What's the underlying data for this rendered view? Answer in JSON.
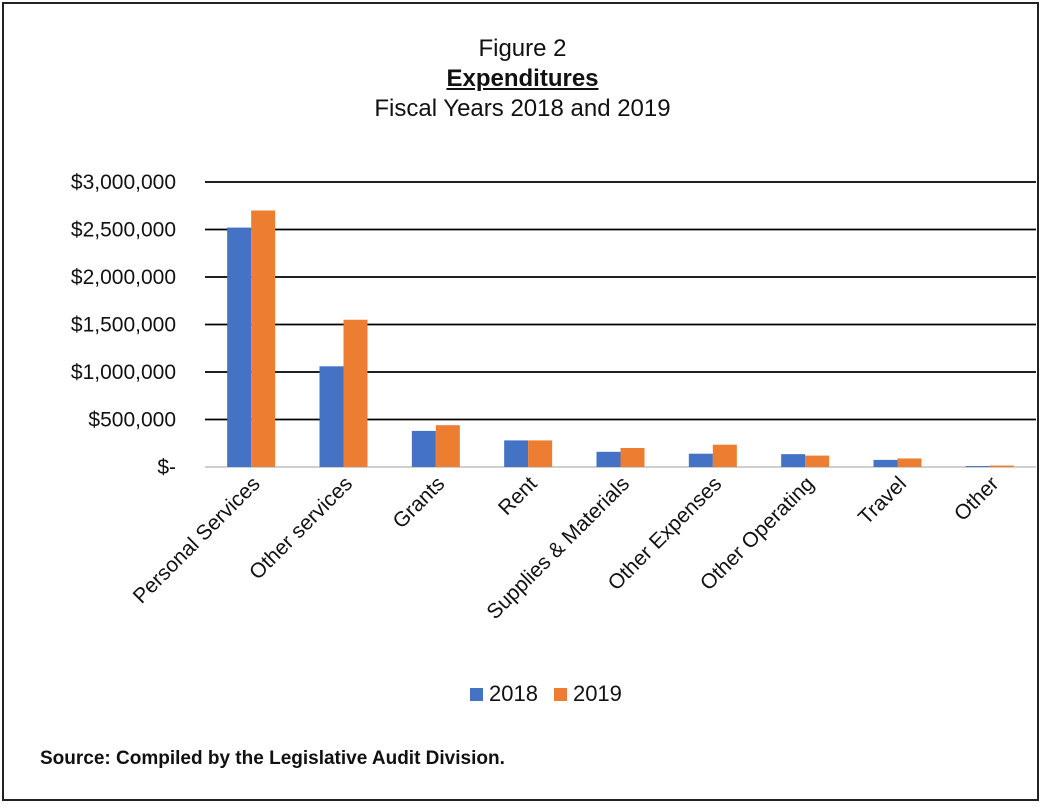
{
  "figure_label": "Figure 2",
  "title": "Expenditures",
  "subtitle": "Fiscal Years 2018 and 2019",
  "source_note": "Source:  Compiled by the Legislative Audit Division.",
  "colors": {
    "s2018": "#4472C4",
    "s2019": "#ED7D31",
    "grid": "#000000"
  },
  "chart_data": {
    "type": "bar",
    "title": "Expenditures",
    "subtitle": "Fiscal Years 2018 and 2019",
    "categories": [
      "Personal Services",
      "Other services",
      "Grants",
      "Rent",
      "Supplies & Materials",
      "Other Expenses",
      "Other Operating",
      "Travel",
      "Other"
    ],
    "series": [
      {
        "name": "2018",
        "values": [
          2520000,
          1060000,
          380000,
          280000,
          160000,
          140000,
          135000,
          75000,
          10000
        ]
      },
      {
        "name": "2019",
        "values": [
          2700000,
          1550000,
          440000,
          280000,
          200000,
          235000,
          120000,
          90000,
          15000
        ]
      }
    ],
    "ylim": [
      0,
      3000000
    ],
    "yticks": [
      0,
      500000,
      1000000,
      1500000,
      2000000,
      2500000,
      3000000
    ],
    "ytick_labels": [
      "$-",
      "$500,000",
      "$1,000,000",
      "$1,500,000",
      "$2,000,000",
      "$2,500,000",
      "$3,000,000"
    ],
    "grid": true,
    "legend_position": "bottom"
  }
}
